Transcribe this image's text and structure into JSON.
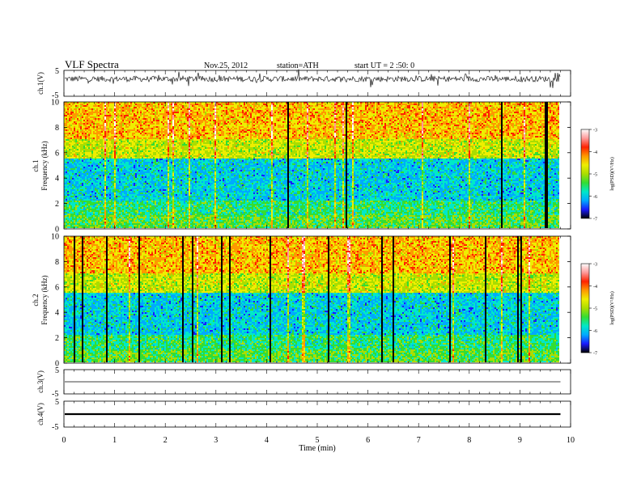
{
  "header": {
    "title": "VLF Spectra",
    "date": "Nov.25, 2012",
    "station": "station=ATH",
    "start": "start UT = 2 :50: 0"
  },
  "chart_data": [
    {
      "type": "line",
      "ylabel": "ch.1(V)",
      "xlim": [
        0,
        10
      ],
      "ylim": [
        -5,
        5
      ],
      "y_tick_labels": [
        "5",
        "-5"
      ],
      "baseline": 1.7
    },
    {
      "type": "heatmap",
      "ylabel": [
        "ch.1",
        "Frequency (kHz)"
      ],
      "xlim": [
        0,
        10
      ],
      "ylim": [
        0,
        10
      ],
      "y_tick_labels": [
        "0",
        "2",
        "4",
        "6",
        "8",
        "10"
      ],
      "data_end_x": 9.8,
      "colorbar": {
        "label": "log(PSD)(V²/Hz)",
        "range": [
          -7,
          -3
        ],
        "ticks": [
          "-3",
          "-4",
          "-5",
          "-6",
          "-7"
        ]
      }
    },
    {
      "type": "heatmap",
      "ylabel": [
        "ch.2",
        "Frequency (kHz)"
      ],
      "xlim": [
        0,
        10
      ],
      "ylim": [
        0,
        10
      ],
      "y_tick_labels": [
        "0",
        "2",
        "4",
        "6",
        "8",
        "10"
      ],
      "data_end_x": 9.8,
      "colorbar": {
        "label": "log(PSD)(V²/Hz)",
        "range": [
          -7,
          -3
        ],
        "ticks": [
          "-3",
          "-4",
          "-5",
          "-6",
          "-7"
        ]
      }
    },
    {
      "type": "line",
      "ylabel": "ch.3(V)",
      "xlim": [
        0,
        10
      ],
      "ylim": [
        -5,
        5
      ],
      "y_tick_labels": [
        "5",
        "-5"
      ],
      "baseline": 0
    },
    {
      "type": "line",
      "ylabel": "ch.4(V)",
      "xlim": [
        0,
        10
      ],
      "ylim": [
        -5,
        5
      ],
      "y_tick_labels": [
        "5",
        "-5"
      ],
      "baseline": 0
    }
  ],
  "x_axis": {
    "label": "Time (min)",
    "tick_labels": [
      "0",
      "1",
      "2",
      "3",
      "4",
      "5",
      "6",
      "7",
      "8",
      "9",
      "10"
    ]
  },
  "colors": {
    "scale": [
      "#000000",
      "#1a1aff",
      "#00aaff",
      "#00e8c8",
      "#33dd33",
      "#aadd00",
      "#eeee00",
      "#ff9900",
      "#ff2200",
      "#ff9999",
      "#ffffff"
    ],
    "trace": "#000000"
  }
}
